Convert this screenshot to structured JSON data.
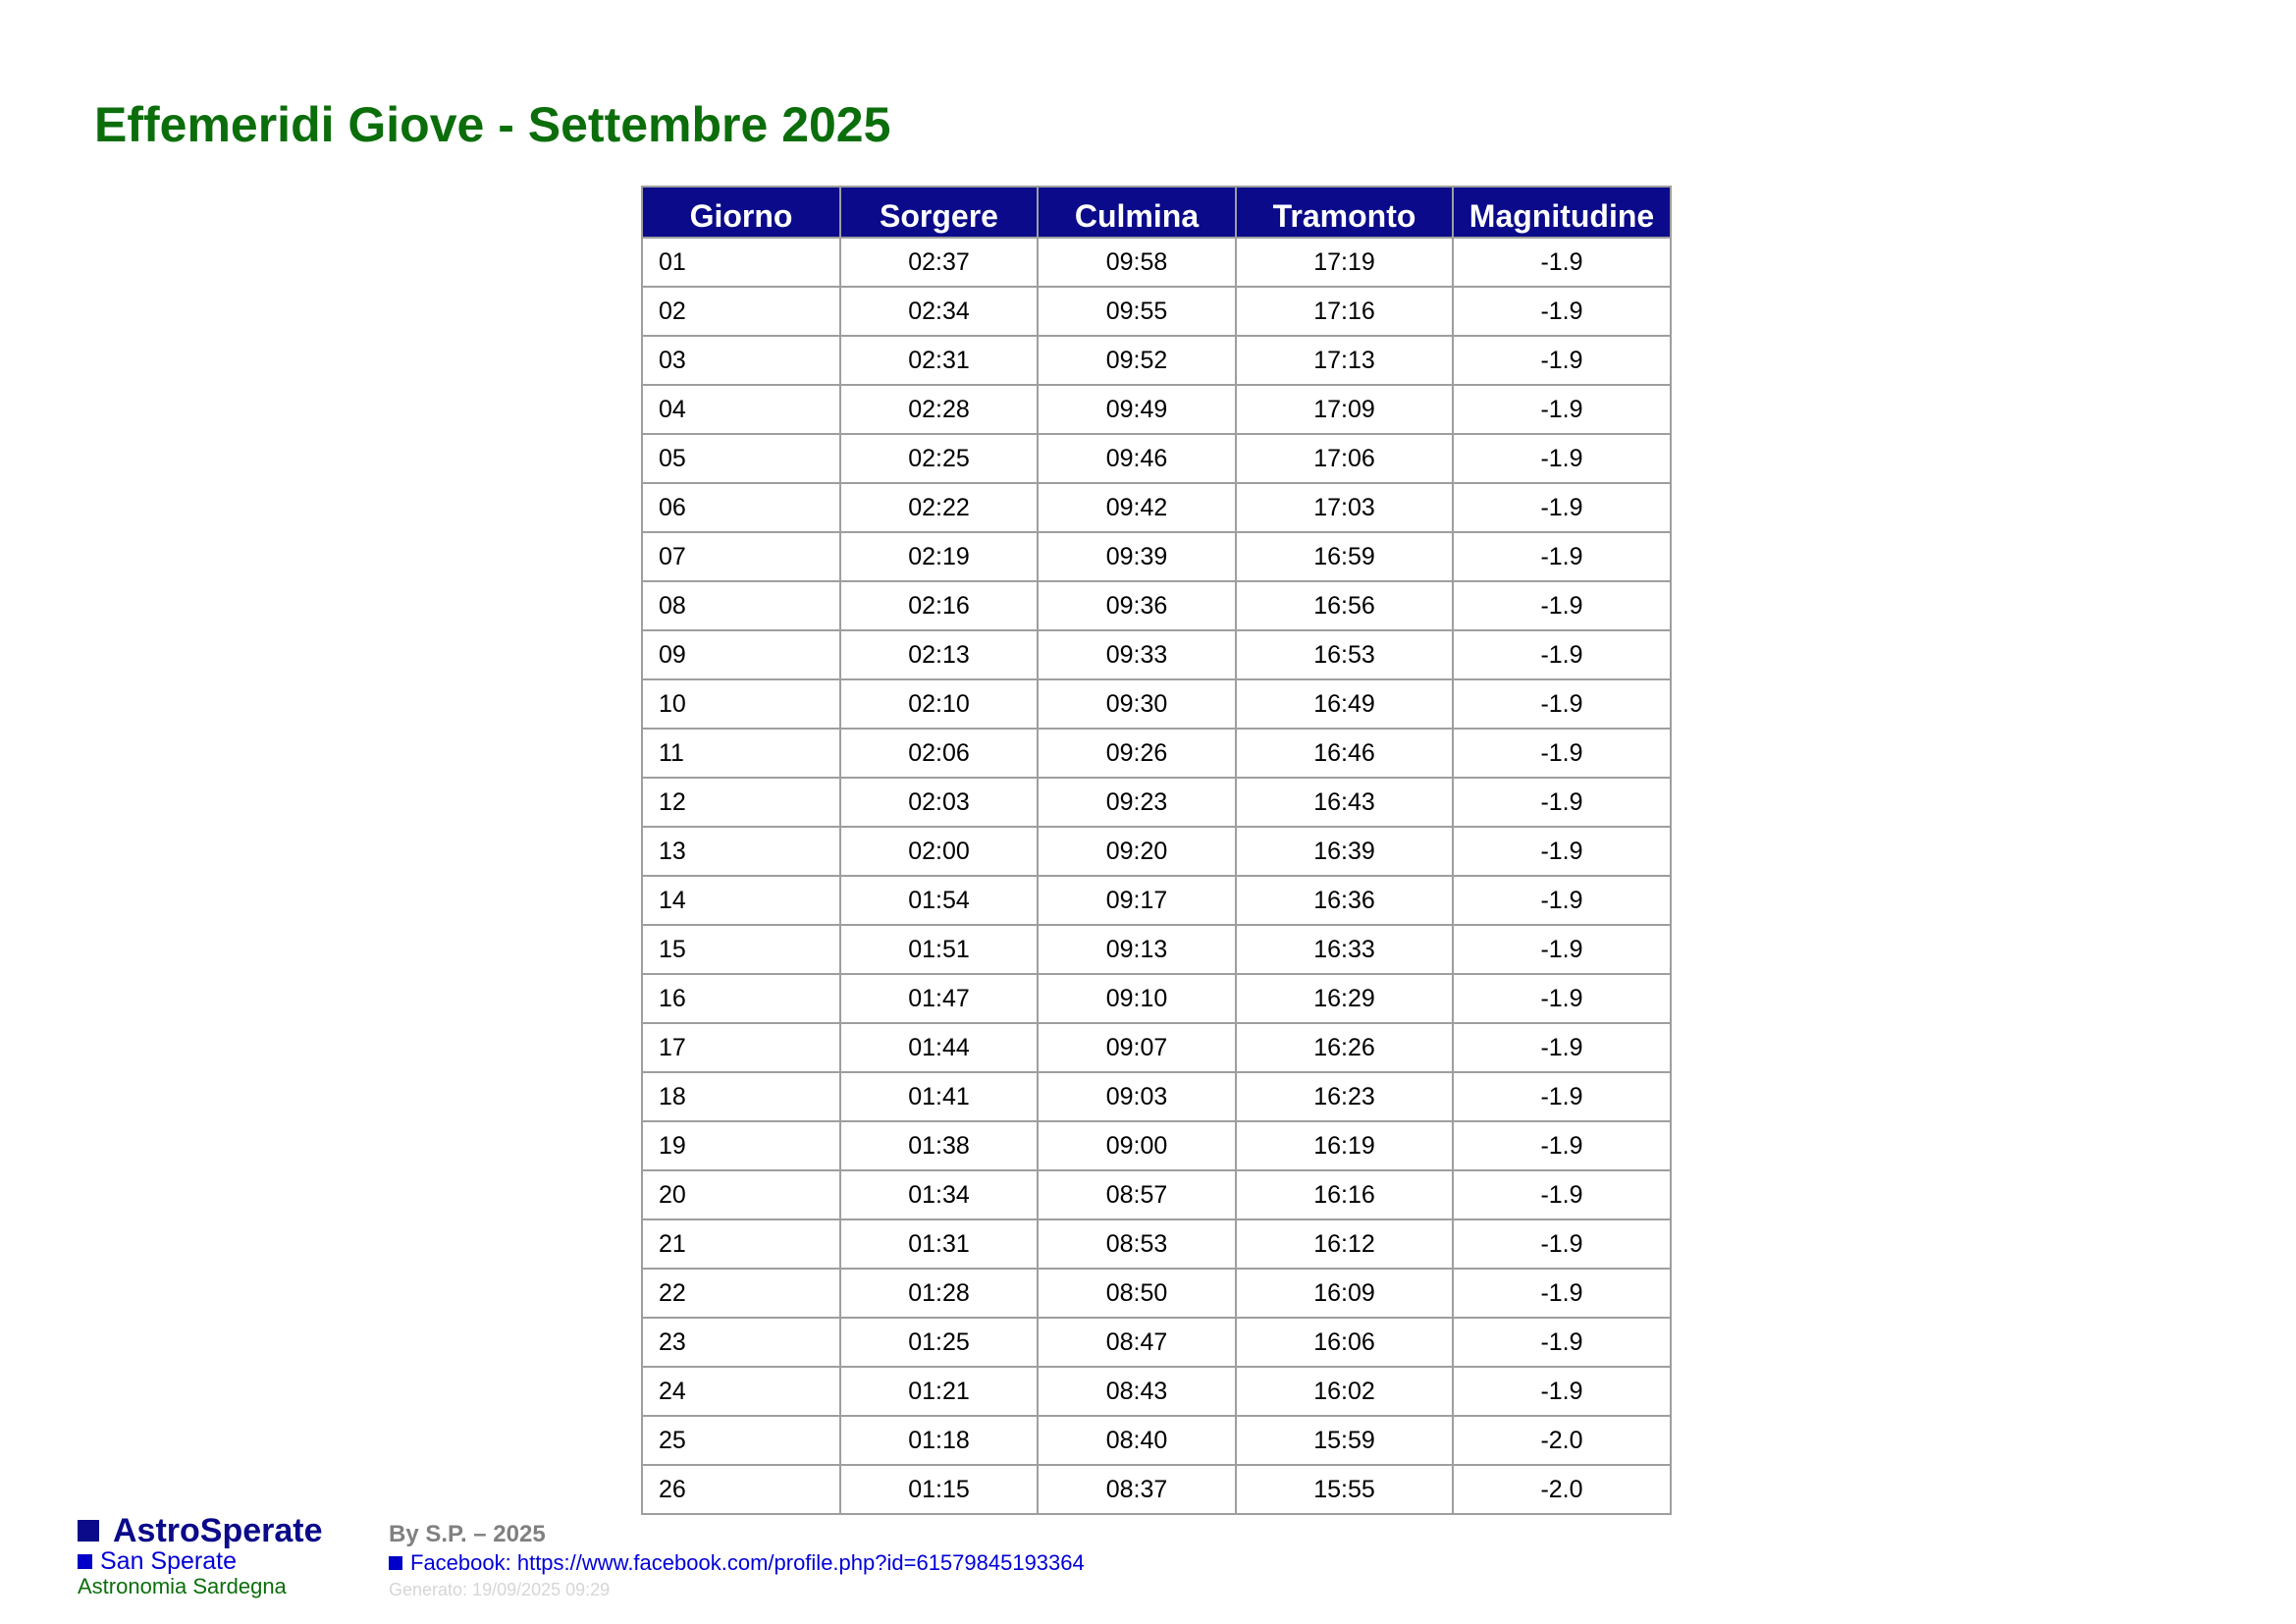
{
  "title": "Effemeridi Giove - Settembre 2025",
  "colors": {
    "title": "#0b6e0b",
    "header_bg": "#0a0a8a",
    "header_text": "#ffffff",
    "border": "#9e9e9e"
  },
  "table": {
    "headers": [
      "Giorno",
      "Sorgere",
      "Culmina",
      "Tramonto",
      "Magnitudine"
    ],
    "rows": [
      [
        "01",
        "02:37",
        "09:58",
        "17:19",
        "-1.9"
      ],
      [
        "02",
        "02:34",
        "09:55",
        "17:16",
        "-1.9"
      ],
      [
        "03",
        "02:31",
        "09:52",
        "17:13",
        "-1.9"
      ],
      [
        "04",
        "02:28",
        "09:49",
        "17:09",
        "-1.9"
      ],
      [
        "05",
        "02:25",
        "09:46",
        "17:06",
        "-1.9"
      ],
      [
        "06",
        "02:22",
        "09:42",
        "17:03",
        "-1.9"
      ],
      [
        "07",
        "02:19",
        "09:39",
        "16:59",
        "-1.9"
      ],
      [
        "08",
        "02:16",
        "09:36",
        "16:56",
        "-1.9"
      ],
      [
        "09",
        "02:13",
        "09:33",
        "16:53",
        "-1.9"
      ],
      [
        "10",
        "02:10",
        "09:30",
        "16:49",
        "-1.9"
      ],
      [
        "11",
        "02:06",
        "09:26",
        "16:46",
        "-1.9"
      ],
      [
        "12",
        "02:03",
        "09:23",
        "16:43",
        "-1.9"
      ],
      [
        "13",
        "02:00",
        "09:20",
        "16:39",
        "-1.9"
      ],
      [
        "14",
        "01:54",
        "09:17",
        "16:36",
        "-1.9"
      ],
      [
        "15",
        "01:51",
        "09:13",
        "16:33",
        "-1.9"
      ],
      [
        "16",
        "01:47",
        "09:10",
        "16:29",
        "-1.9"
      ],
      [
        "17",
        "01:44",
        "09:07",
        "16:26",
        "-1.9"
      ],
      [
        "18",
        "01:41",
        "09:03",
        "16:23",
        "-1.9"
      ],
      [
        "19",
        "01:38",
        "09:00",
        "16:19",
        "-1.9"
      ],
      [
        "20",
        "01:34",
        "08:57",
        "16:16",
        "-1.9"
      ],
      [
        "21",
        "01:31",
        "08:53",
        "16:12",
        "-1.9"
      ],
      [
        "22",
        "01:28",
        "08:50",
        "16:09",
        "-1.9"
      ],
      [
        "23",
        "01:25",
        "08:47",
        "16:06",
        "-1.9"
      ],
      [
        "24",
        "01:21",
        "08:43",
        "16:02",
        "-1.9"
      ],
      [
        "25",
        "01:18",
        "08:40",
        "15:59",
        "-2.0"
      ],
      [
        "26",
        "01:15",
        "08:37",
        "15:55",
        "-2.0"
      ]
    ]
  },
  "footer": {
    "brand": "AstroSperate",
    "location": "San Sperate",
    "tagline": "Astronomia Sardegna",
    "by": "By S.P. – 2025",
    "facebook": "Facebook: https://www.facebook.com/profile.php?id=61579845193364",
    "generated": "Generato: 19/09/2025 09:29"
  }
}
